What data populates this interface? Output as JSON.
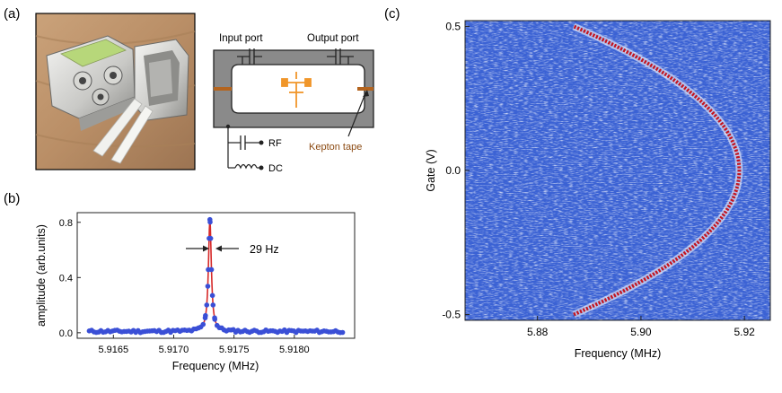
{
  "panel_a": {
    "label": "(a)",
    "input_port": "Input port",
    "output_port": "Output port",
    "rf": "RF",
    "dc": "DC",
    "kepton": "Kepton tape",
    "colors": {
      "cavity": "#888888",
      "tape": "#b4641e",
      "device": "#f0962a"
    }
  },
  "panel_b": {
    "label": "(b)",
    "linewidth": "29 Hz"
  },
  "panel_c": {
    "label": "(c)"
  },
  "chart_data": [
    {
      "type": "line",
      "title": "",
      "xlabel": "Frequency (MHz)",
      "ylabel": "amplitude (arb.units)",
      "xlim": [
        5.9162,
        5.9185
      ],
      "ylim": [
        -0.04,
        0.87
      ],
      "xticks": [
        "5.9165",
        "5.9170",
        "5.9175",
        "5.9180"
      ],
      "yticks": [
        "0.0",
        "0.4",
        "0.8"
      ],
      "series": [
        {
          "name": "data",
          "color": "#3a4fd6",
          "marker": "circle"
        },
        {
          "name": "fit",
          "color": "#d62a2a",
          "marker": "none"
        }
      ],
      "lorentzian": {
        "center": 5.9173,
        "peak": 0.82,
        "fwhm_hz": 29,
        "baseline": 0.01,
        "x_start": 5.9163,
        "x_end": 5.9184
      },
      "annotation": "29 Hz"
    },
    {
      "type": "heatmap",
      "title": "",
      "xlabel": "Frequency (MHz)",
      "ylabel": "Gate (V)",
      "xlim": [
        5.866,
        5.925
      ],
      "ylim": [
        -0.52,
        0.52
      ],
      "xticks": [
        "5.88",
        "5.90",
        "5.92"
      ],
      "yticks": [
        "0.5",
        "0.0",
        "-0.5"
      ],
      "resonance": {
        "f0_mhz": 5.919,
        "curvature_mhz_per_v2": 0.128,
        "gate_from": -0.5,
        "gate_to": 0.5
      },
      "colors": {
        "background": "#3b62d4",
        "peak": "#c4141e"
      }
    }
  ]
}
